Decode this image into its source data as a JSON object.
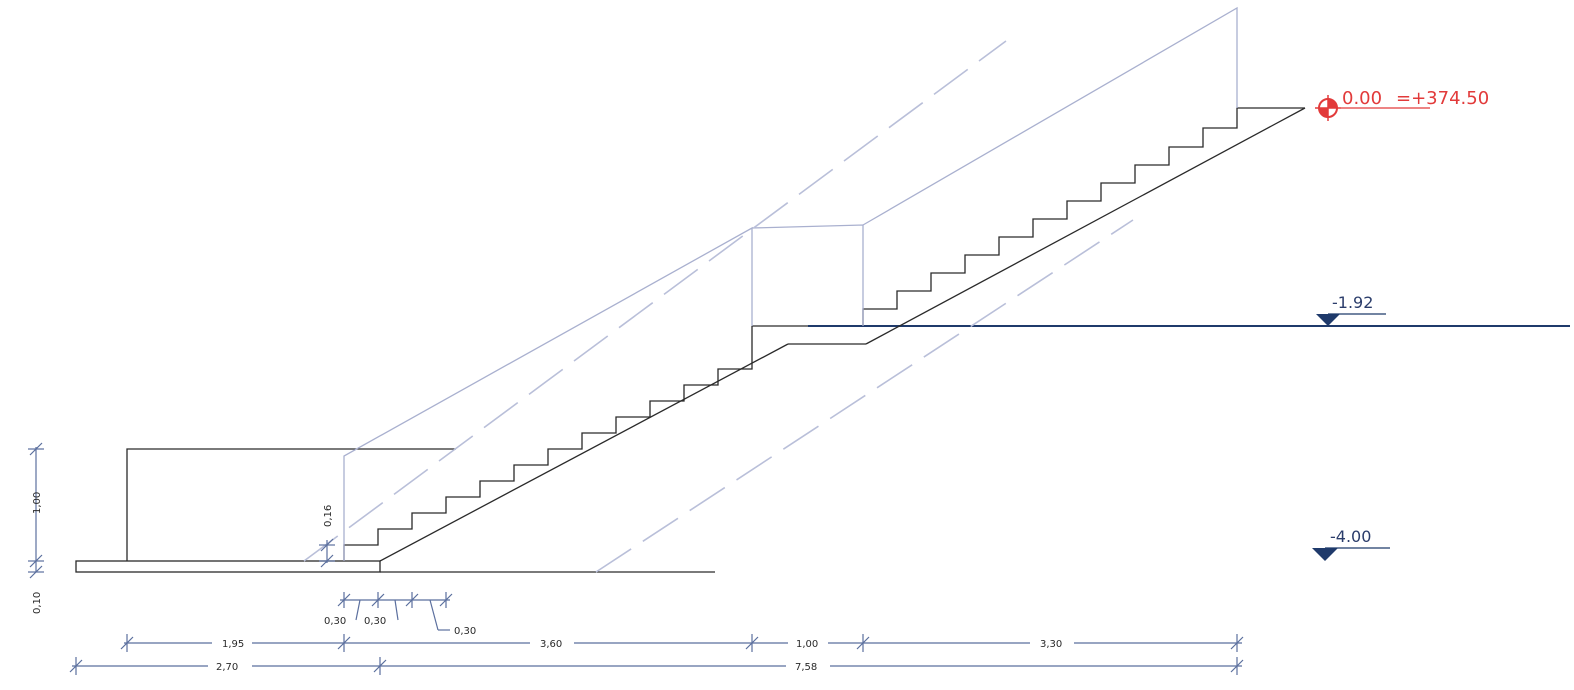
{
  "levels": {
    "datum": {
      "value": "0.00",
      "absolute": "=+374.50"
    },
    "mid": "-1.92",
    "bottom": "-4.00"
  },
  "dimensions": {
    "vertical": {
      "rail_height": "1,00",
      "slab_thickness": "0,10",
      "riser": "0,16"
    },
    "treads": {
      "t1": "0,30",
      "t2": "0,30",
      "t3": "0,30"
    },
    "row1": {
      "a": "1,95",
      "b": "3,60",
      "c": "1,00",
      "d": "3,30"
    },
    "row2": {
      "a": "2,70",
      "b": "7,58"
    }
  },
  "colors": {
    "dark_line": "#2a2a2a",
    "light_line": "#a9b0cf",
    "dim_line": "#5b6f9e",
    "datum_marker": "#e23a3a",
    "level_marker": "#1f3a6b"
  }
}
